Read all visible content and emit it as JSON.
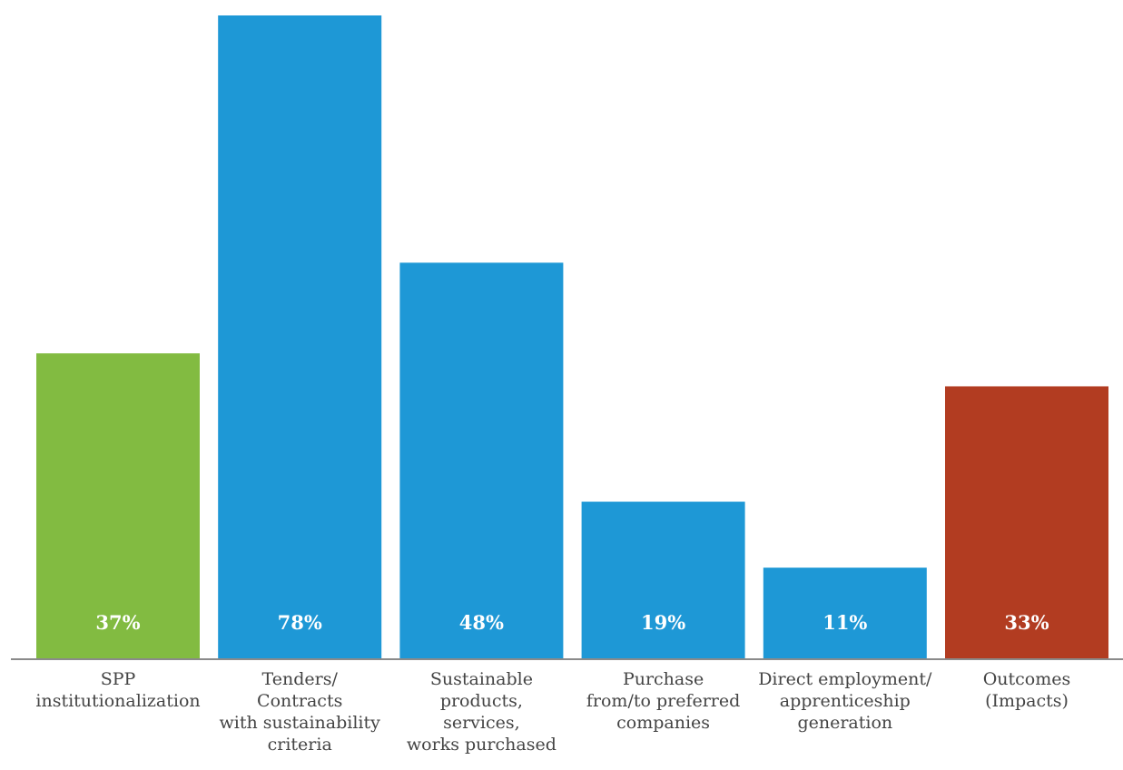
{
  "chart_data": {
    "type": "bar",
    "title": "",
    "xlabel": "",
    "ylabel": "",
    "ylim": [
      0,
      78
    ],
    "grid": false,
    "categories": [
      [
        "SPP",
        "institutionalization"
      ],
      [
        "Tenders/",
        "Contracts",
        "with sustainability",
        "criteria"
      ],
      [
        "Sustainable",
        "products,",
        "services,",
        "works purchased"
      ],
      [
        "Purchase",
        "from/to preferred",
        "companies"
      ],
      [
        "Direct employment/",
        "apprenticeship",
        "generation"
      ],
      [
        "Outcomes",
        "(Impacts)"
      ]
    ],
    "values": [
      37,
      78,
      48,
      19,
      11,
      33
    ],
    "value_labels": [
      "37%",
      "78%",
      "48%",
      "19%",
      "11%",
      "33%"
    ],
    "colors": [
      "#82bb41",
      "#1e98d6",
      "#1e98d6",
      "#1e98d6",
      "#1e98d6",
      "#b23c21"
    ]
  }
}
